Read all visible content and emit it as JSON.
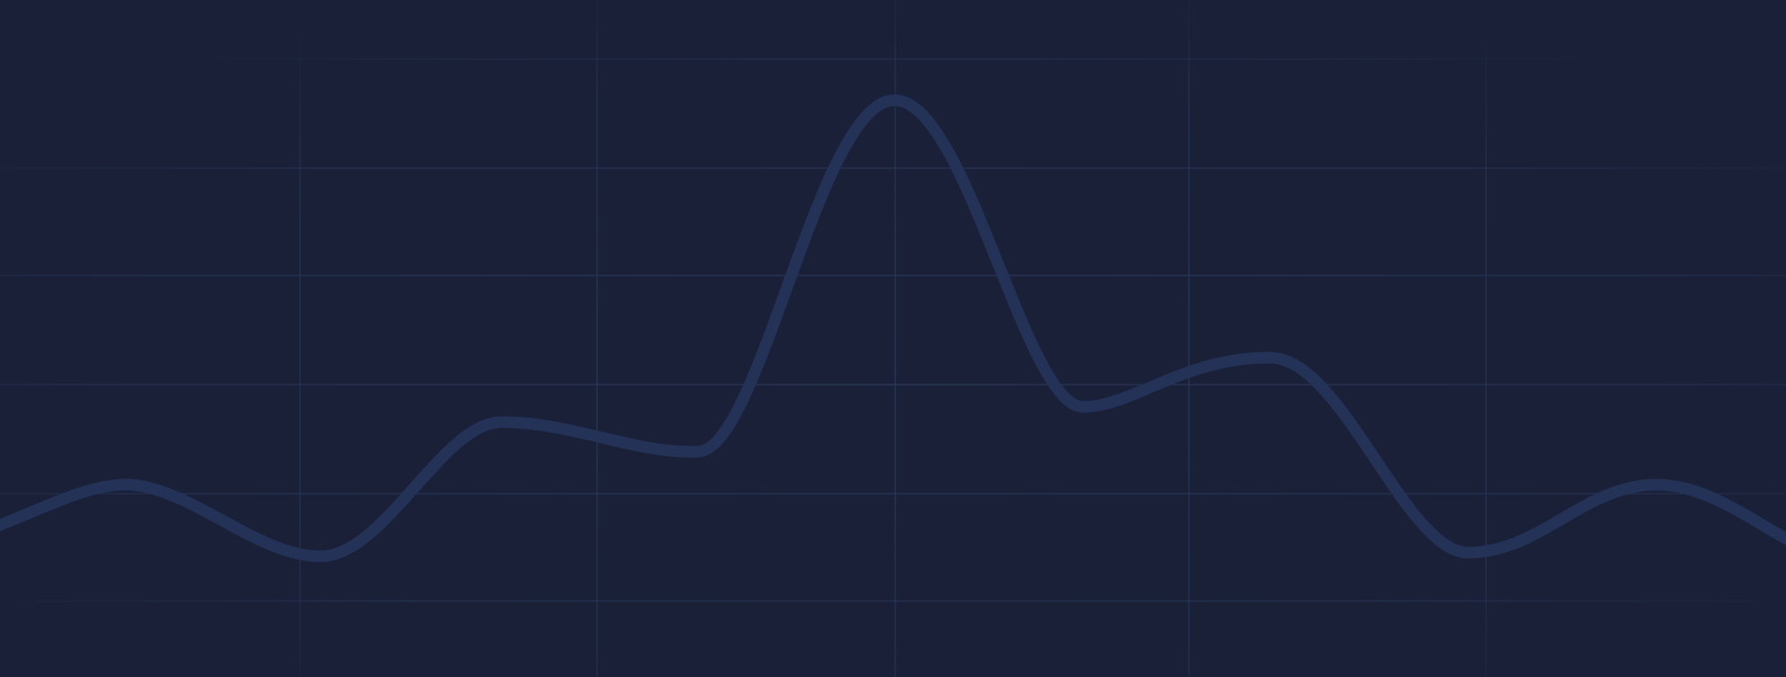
{
  "background": {
    "color": "#1a2038",
    "grid_color": "#2a3a5a",
    "line_color": "#243257"
  }
}
